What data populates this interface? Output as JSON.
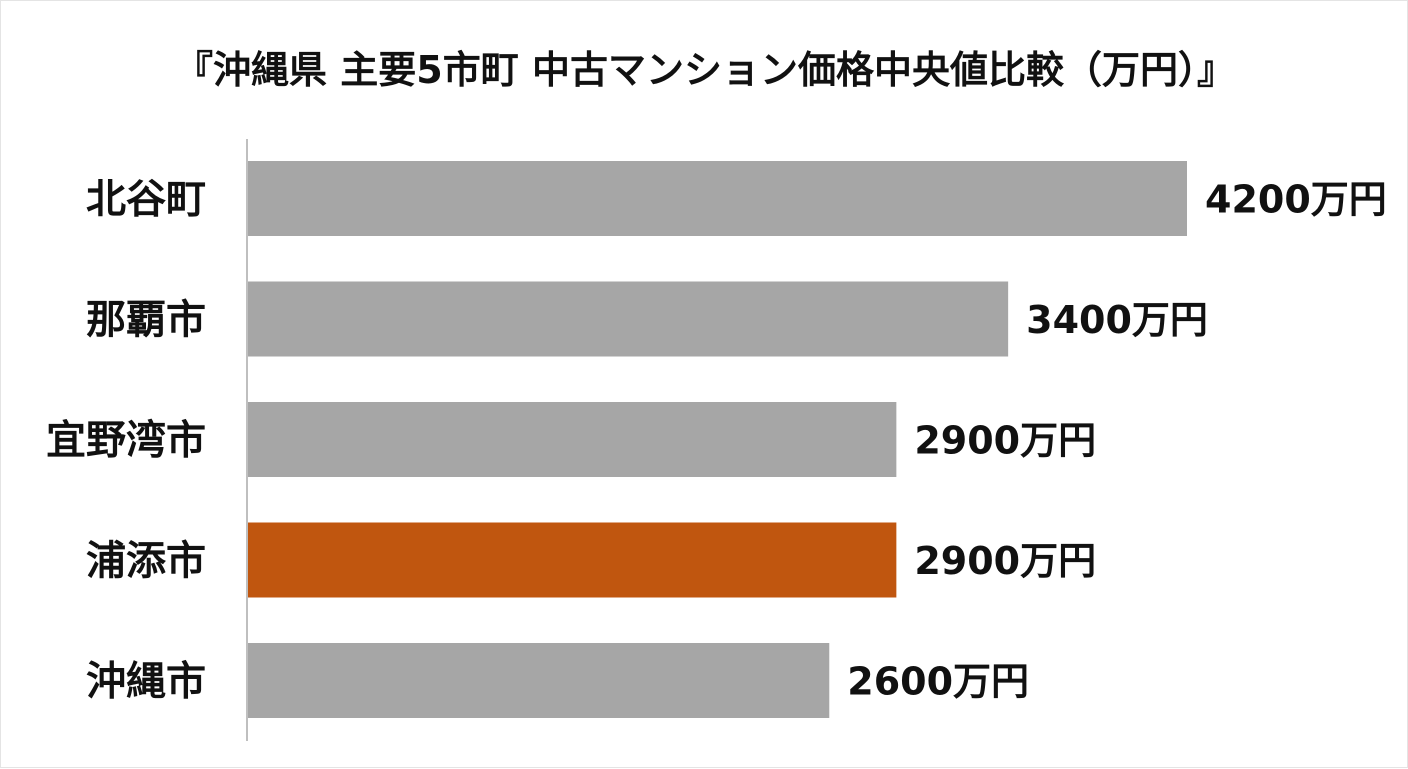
{
  "chart_data": {
    "type": "bar",
    "orientation": "horizontal",
    "title": "『沖縄県 主要5市町 中古マンション価格中央値比較（万円）』",
    "categories": [
      "北谷町",
      "那覇市",
      "宜野湾市",
      "浦添市",
      "沖縄市"
    ],
    "values": [
      4200,
      3400,
      2900,
      2900,
      2600
    ],
    "value_labels": [
      "4200万円",
      "3400万円",
      "2900万円",
      "2900万円",
      "2600万円"
    ],
    "highlight_index": 3,
    "xlim": [
      0,
      4200
    ],
    "grid": false,
    "legend": "none",
    "colors": {
      "default_bar": "#a6a6a6",
      "highlight_bar": "#c0560f",
      "axis": "#bfbfbf",
      "text": "#111111"
    }
  }
}
